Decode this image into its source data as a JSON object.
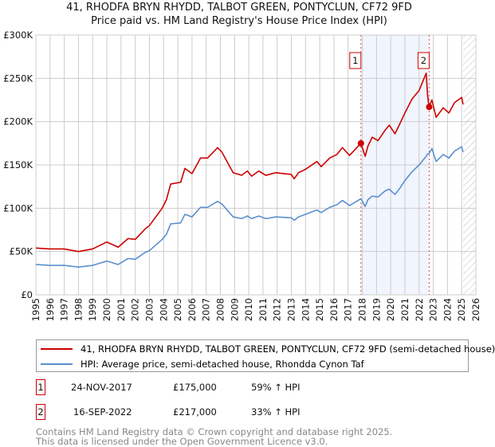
{
  "header": {
    "title": "41, RHODFA BRYN RHYDD, TALBOT GREEN, PONTYCLUN, CF72 9FD",
    "subtitle": "Price paid vs. HM Land Registry's House Price Index (HPI)"
  },
  "chart_data": {
    "type": "line",
    "title": "41, RHODFA BRYN RHYDD, TALBOT GREEN, PONTYCLUN, CF72 9FD",
    "subtitle": "Price paid vs. HM Land Registry's House Price Index (HPI)",
    "xlim": [
      1995,
      2026
    ],
    "ylim": [
      0,
      300000
    ],
    "x_ticks": [
      "1995",
      "1996",
      "1997",
      "1998",
      "1999",
      "2000",
      "2001",
      "2002",
      "2003",
      "2004",
      "2005",
      "2006",
      "2007",
      "2008",
      "2009",
      "2010",
      "2011",
      "2012",
      "2013",
      "2014",
      "2015",
      "2016",
      "2017",
      "2018",
      "2019",
      "2020",
      "2021",
      "2022",
      "2023",
      "2024",
      "2025",
      "2026"
    ],
    "y_ticks": [
      {
        "v": 0,
        "label": "£0"
      },
      {
        "v": 50000,
        "label": "£50K"
      },
      {
        "v": 100000,
        "label": "£100K"
      },
      {
        "v": 150000,
        "label": "£150K"
      },
      {
        "v": 200000,
        "label": "£200K"
      },
      {
        "v": 250000,
        "label": "£250K"
      },
      {
        "v": 300000,
        "label": "£300K"
      }
    ],
    "grid": true,
    "shaded_range": [
      2017.9,
      2022.71
    ],
    "forecast_hatch_from": 2025.1,
    "x": [
      1995,
      1996,
      1997,
      1998,
      1999,
      2000,
      2000.8,
      2001.5,
      2002,
      2002.7,
      2003,
      2003.9,
      2004.2,
      2004.5,
      2005.2,
      2005.5,
      2006,
      2006.6,
      2007.1,
      2007.8,
      2008.1,
      2008.9,
      2009.5,
      2009.9,
      2010.2,
      2010.7,
      2011.2,
      2011.9,
      2013,
      2013.2,
      2013.5,
      2014,
      2014.8,
      2015.1,
      2015.7,
      2016.2,
      2016.6,
      2017.1,
      2017.9,
      2018.2,
      2018.4,
      2018.7,
      2019.1,
      2019.6,
      2019.9,
      2020.3,
      2020.6,
      2021,
      2021.5,
      2022,
      2022.5,
      2022.6,
      2022.7,
      2022.9,
      2023.2,
      2023.7,
      2024.1,
      2024.5,
      2025,
      2025.1
    ],
    "series": [
      {
        "name": "41, RHODFA BRYN RHYDD, TALBOT GREEN, PONTYCLUN, CF72 9FD (semi-detached house)",
        "color": "#cc0000",
        "values": [
          54000,
          53000,
          53000,
          50000,
          53000,
          61000,
          55000,
          65000,
          64000,
          76000,
          80000,
          100000,
          110000,
          128000,
          130000,
          146000,
          140000,
          158000,
          158000,
          170000,
          165000,
          141000,
          138000,
          143000,
          137000,
          143000,
          138000,
          141000,
          139000,
          134000,
          141000,
          145000,
          154000,
          148000,
          158000,
          162000,
          170000,
          161000,
          175000,
          160000,
          172000,
          182000,
          178000,
          190000,
          196000,
          186000,
          196000,
          210000,
          226000,
          236000,
          256000,
          230000,
          217000,
          225000,
          205000,
          216000,
          210000,
          222000,
          228000,
          220000
        ]
      },
      {
        "name": "HPI: Average price, semi-detached house, Rhondda Cynon Taf",
        "color": "#5b8fd0",
        "values": [
          35000,
          34000,
          34000,
          32000,
          34000,
          39000,
          35000,
          42000,
          41000,
          49000,
          51000,
          64000,
          70000,
          82000,
          83000,
          93000,
          90000,
          101000,
          101000,
          108000,
          105000,
          90000,
          88000,
          91000,
          88000,
          91000,
          88000,
          90000,
          89000,
          86000,
          90000,
          93000,
          98000,
          95000,
          101000,
          104000,
          109000,
          103000,
          111000,
          102000,
          110000,
          114000,
          113000,
          120000,
          122000,
          116000,
          122000,
          132000,
          142000,
          150000,
          160000,
          163000,
          163000,
          169000,
          154000,
          162000,
          158000,
          166000,
          171000,
          165000
        ]
      }
    ],
    "sales": [
      {
        "label": "1",
        "x": 2017.9,
        "value": 175000
      },
      {
        "label": "2",
        "x": 2022.71,
        "value": 217000
      }
    ]
  },
  "legend": {
    "items": [
      {
        "label": "41, RHODFA BRYN RHYDD, TALBOT GREEN, PONTYCLUN, CF72 9FD (semi-detached house)",
        "color": "#cc0000"
      },
      {
        "label": "HPI: Average price, semi-detached house, Rhondda Cynon Taf",
        "color": "#5b8fd0"
      }
    ]
  },
  "transactions": [
    {
      "num": "1",
      "date": "24-NOV-2017",
      "price": "£175,000",
      "hpi": "59% ↑ HPI"
    },
    {
      "num": "2",
      "date": "16-SEP-2022",
      "price": "£217,000",
      "hpi": "33% ↑ HPI"
    }
  ],
  "footer": {
    "line1": "Contains HM Land Registry data © Crown copyright and database right 2025.",
    "line2": "This data is licensed under the Open Government Licence v3.0."
  }
}
